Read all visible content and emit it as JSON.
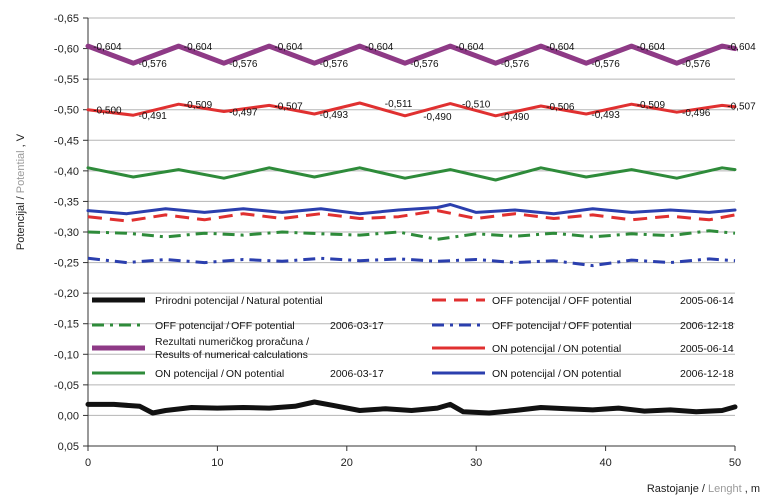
{
  "chart_data": {
    "type": "line",
    "ylabel": "Potencijal / Potential , V",
    "ylabel_parts": [
      "Potencijal / ",
      "Potential",
      " , V"
    ],
    "xlabel": "Rastojanje / Lenght , m",
    "xlabel_parts": [
      "Rastojanje / ",
      "Lenght",
      " , m"
    ],
    "xlim": [
      0,
      50
    ],
    "ylim": [
      0.05,
      -0.65
    ],
    "y_inverted": true,
    "grid": "horizontal",
    "x_ticks": [
      0,
      10,
      20,
      30,
      40,
      50
    ],
    "x_tick_labels": [
      "0",
      "10",
      "20",
      "30",
      "40",
      "50"
    ],
    "y_ticks": [
      -0.65,
      -0.6,
      -0.55,
      -0.5,
      -0.45,
      -0.4,
      -0.35,
      -0.3,
      -0.25,
      -0.2,
      -0.15,
      -0.1,
      -0.05,
      0.0,
      0.05
    ],
    "y_tick_labels": [
      "-0,65",
      "-0,60",
      "-0,55",
      "-0,50",
      "-0,45",
      "-0,40",
      "-0,35",
      "-0,30",
      "-0,25",
      "-0,20",
      "-0,15",
      "-0,10",
      "-0,05",
      "0,00",
      "0,05"
    ],
    "series": [
      {
        "key": "natural",
        "label_main": "Prirodni potencijal / ",
        "label_en": "Natural potential",
        "date": "",
        "color": "#111111",
        "style": "solid",
        "width": 5,
        "x": [
          0,
          2,
          4,
          5,
          6,
          8,
          10,
          12,
          14,
          16,
          17.5,
          19,
          21,
          23,
          25,
          27,
          28,
          29,
          31,
          33,
          35,
          37,
          39,
          41,
          43,
          45,
          47,
          49,
          50
        ],
        "y": [
          -0.018,
          -0.018,
          -0.015,
          -0.004,
          -0.008,
          -0.013,
          -0.012,
          -0.013,
          -0.012,
          -0.015,
          -0.022,
          -0.016,
          -0.008,
          -0.011,
          -0.008,
          -0.012,
          -0.018,
          -0.006,
          -0.004,
          -0.008,
          -0.013,
          -0.011,
          -0.009,
          -0.012,
          -0.007,
          -0.009,
          -0.006,
          -0.008,
          -0.014
        ]
      },
      {
        "key": "off2006_03",
        "label_main": "OFF potencijal / ",
        "label_en": "OFF potential",
        "date": "2006-03-17",
        "color": "#2e8b3a",
        "style": "dashdot",
        "width": 3,
        "x": [
          0,
          3,
          6,
          9,
          12,
          15,
          18,
          21,
          24,
          27,
          30,
          33,
          36,
          39,
          42,
          45,
          48,
          50
        ],
        "y": [
          -0.3,
          -0.298,
          -0.292,
          -0.298,
          -0.295,
          -0.3,
          -0.297,
          -0.295,
          -0.3,
          -0.288,
          -0.297,
          -0.293,
          -0.298,
          -0.292,
          -0.297,
          -0.294,
          -0.302,
          -0.298
        ]
      },
      {
        "key": "numerical",
        "label_main": "Rezultati numeričkog proračuna / ",
        "label_en": "Results of numerical calculations",
        "date": "",
        "color": "#8e3a86",
        "style": "solid",
        "width": 5,
        "x": [
          0,
          3.5,
          7,
          10.5,
          14,
          17.5,
          21,
          24.5,
          28,
          31.5,
          35,
          38.5,
          42,
          45.5,
          49,
          50
        ],
        "y": [
          -0.604,
          -0.576,
          -0.604,
          -0.576,
          -0.604,
          -0.576,
          -0.604,
          -0.576,
          -0.604,
          -0.576,
          -0.604,
          -0.576,
          -0.604,
          -0.576,
          -0.604,
          -0.6
        ]
      },
      {
        "key": "on2006_03",
        "label_main": "ON potencijal / ",
        "label_en": "ON potential",
        "date": "2006-03-17",
        "color": "#2e8b3a",
        "style": "solid",
        "width": 3,
        "x": [
          0,
          3.5,
          7,
          10.5,
          14,
          17.5,
          21,
          24.5,
          28,
          31.5,
          35,
          38.5,
          42,
          45.5,
          49,
          50
        ],
        "y": [
          -0.405,
          -0.39,
          -0.402,
          -0.388,
          -0.405,
          -0.39,
          -0.405,
          -0.388,
          -0.402,
          -0.385,
          -0.405,
          -0.39,
          -0.402,
          -0.388,
          -0.405,
          -0.402
        ]
      },
      {
        "key": "off2005_06",
        "label_main": "OFF potencijal / ",
        "label_en": "OFF potential",
        "date": "2005-06-14",
        "color": "#e03030",
        "style": "dash",
        "width": 3,
        "x": [
          0,
          3,
          6,
          9,
          12,
          15,
          18,
          21,
          24,
          27,
          30,
          33,
          36,
          39,
          42,
          45,
          48,
          50
        ],
        "y": [
          -0.325,
          -0.318,
          -0.328,
          -0.32,
          -0.33,
          -0.322,
          -0.33,
          -0.322,
          -0.325,
          -0.335,
          -0.322,
          -0.33,
          -0.322,
          -0.328,
          -0.32,
          -0.326,
          -0.32,
          -0.328
        ]
      },
      {
        "key": "off2006_12",
        "label_main": "OFF potencijal / ",
        "label_en": "OFF potential",
        "date": "2006-12-18",
        "color": "#2b3fae",
        "style": "dashdot",
        "width": 3,
        "x": [
          0,
          3,
          6,
          9,
          12,
          15,
          18,
          21,
          24,
          27,
          30,
          33,
          36,
          39,
          42,
          45,
          48,
          50
        ],
        "y": [
          -0.257,
          -0.25,
          -0.255,
          -0.25,
          -0.255,
          -0.252,
          -0.257,
          -0.253,
          -0.256,
          -0.252,
          -0.255,
          -0.25,
          -0.253,
          -0.245,
          -0.254,
          -0.25,
          -0.256,
          -0.253
        ]
      },
      {
        "key": "on2005_06",
        "label_main": "ON potencijal / ",
        "label_en": "ON potential",
        "date": "2005-06-14",
        "color": "#e03030",
        "style": "solid",
        "width": 3,
        "x": [
          0,
          3.5,
          7,
          10.5,
          14,
          17.5,
          21,
          24.5,
          28,
          31.5,
          35,
          38.5,
          42,
          45.5,
          49,
          50
        ],
        "y": [
          -0.5,
          -0.491,
          -0.509,
          -0.497,
          -0.507,
          -0.493,
          -0.511,
          -0.49,
          -0.51,
          -0.49,
          -0.506,
          -0.493,
          -0.509,
          -0.496,
          -0.507,
          -0.505
        ]
      },
      {
        "key": "on2006_12",
        "label_main": "ON potencijal / ",
        "label_en": "ON potential",
        "date": "2006-12-18",
        "color": "#2b3fae",
        "style": "solid",
        "width": 3,
        "x": [
          0,
          3,
          6,
          9,
          12,
          15,
          18,
          21,
          24,
          27,
          28,
          30,
          33,
          36,
          39,
          42,
          45,
          48,
          50
        ],
        "y": [
          -0.335,
          -0.33,
          -0.338,
          -0.332,
          -0.338,
          -0.332,
          -0.338,
          -0.33,
          -0.336,
          -0.34,
          -0.345,
          -0.332,
          -0.336,
          -0.33,
          -0.338,
          -0.332,
          -0.336,
          -0.332,
          -0.336
        ]
      }
    ],
    "annotations": [
      {
        "x": 1.5,
        "y": -0.604,
        "text": "-0,604"
      },
      {
        "x": 5.0,
        "y": -0.576,
        "text": "-0,576"
      },
      {
        "x": 8.5,
        "y": -0.604,
        "text": "-0,604"
      },
      {
        "x": 12.0,
        "y": -0.576,
        "text": "-0,576"
      },
      {
        "x": 15.5,
        "y": -0.604,
        "text": "-0,604"
      },
      {
        "x": 19.0,
        "y": -0.576,
        "text": "-0,576"
      },
      {
        "x": 22.5,
        "y": -0.604,
        "text": "-0,604"
      },
      {
        "x": 26.0,
        "y": -0.576,
        "text": "-0,576"
      },
      {
        "x": 29.5,
        "y": -0.604,
        "text": "-0,604"
      },
      {
        "x": 33.0,
        "y": -0.576,
        "text": "-0,576"
      },
      {
        "x": 36.5,
        "y": -0.604,
        "text": "-0,604"
      },
      {
        "x": 40.0,
        "y": -0.576,
        "text": "-0,576"
      },
      {
        "x": 43.5,
        "y": -0.604,
        "text": "-0,604"
      },
      {
        "x": 47.0,
        "y": -0.576,
        "text": "-0,576"
      },
      {
        "x": 50.5,
        "y": -0.604,
        "text": "-0,604"
      },
      {
        "x": 1.5,
        "y": -0.5,
        "text": "-0,500"
      },
      {
        "x": 5.0,
        "y": -0.491,
        "text": "-0,491"
      },
      {
        "x": 8.5,
        "y": -0.509,
        "text": "-0,509"
      },
      {
        "x": 12.0,
        "y": -0.497,
        "text": "-0,497"
      },
      {
        "x": 15.5,
        "y": -0.507,
        "text": "-0,507"
      },
      {
        "x": 19.0,
        "y": -0.493,
        "text": "-0,493"
      },
      {
        "x": 24.0,
        "y": -0.511,
        "text": "-0,511"
      },
      {
        "x": 27.0,
        "y": -0.49,
        "text": "-0,490"
      },
      {
        "x": 30.0,
        "y": -0.51,
        "text": "-0,510"
      },
      {
        "x": 33.0,
        "y": -0.49,
        "text": "-0,490"
      },
      {
        "x": 36.5,
        "y": -0.506,
        "text": "-0,506"
      },
      {
        "x": 40.0,
        "y": -0.493,
        "text": "-0,493"
      },
      {
        "x": 43.5,
        "y": -0.509,
        "text": "-0,509"
      },
      {
        "x": 47.0,
        "y": -0.496,
        "text": "-0,496"
      },
      {
        "x": 50.5,
        "y": -0.507,
        "text": "-0,507"
      }
    ],
    "legend_order": [
      "natural",
      "off2005_06",
      "off2006_03",
      "off2006_12",
      "numerical",
      "on2005_06",
      "on2006_03",
      "on2006_12"
    ],
    "legend_placement": "lower-middle, inside plot, two columns"
  }
}
